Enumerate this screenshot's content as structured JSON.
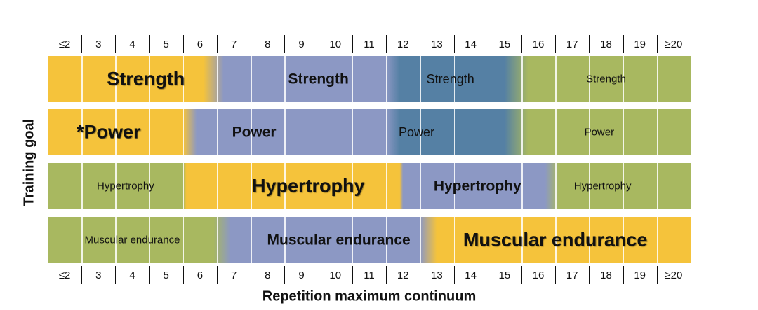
{
  "colors": {
    "gold": "#F5C33B",
    "lavender": "#8C98C4",
    "steel_blue": "#5580A4",
    "olive": "#A8B860",
    "divider": "#ffffff"
  },
  "scale": {
    "ticks": [
      "≤2",
      "3",
      "4",
      "5",
      "6",
      "7",
      "8",
      "9",
      "10",
      "11",
      "12",
      "13",
      "14",
      "15",
      "16",
      "17",
      "18",
      "19",
      "≥20"
    ]
  },
  "axis": {
    "x_title": "Repetition maximum continuum",
    "y_title": "Training goal"
  },
  "rows": [
    {
      "goal": "Strength",
      "segments": [
        {
          "from": 0,
          "to": 4.6,
          "color": "gold"
        },
        {
          "from": 5.2,
          "to": 10,
          "color": "lavender"
        },
        {
          "from": 10.4,
          "to": 13.5,
          "color": "steel_blue"
        },
        {
          "from": 14.2,
          "to": 19,
          "color": "olive"
        }
      ],
      "labels": [
        {
          "text": "Strength",
          "center": 2.9,
          "style": "big"
        },
        {
          "text": "Strength",
          "center": 8.0,
          "style": "mid"
        },
        {
          "text": "Strength",
          "center": 11.9,
          "style": "plain"
        },
        {
          "text": "Strength",
          "center": 16.5,
          "style": "small"
        }
      ]
    },
    {
      "goal": "Power",
      "segments": [
        {
          "from": 0,
          "to": 4.0,
          "color": "gold"
        },
        {
          "from": 4.4,
          "to": 10,
          "color": "lavender"
        },
        {
          "from": 10.4,
          "to": 13.5,
          "color": "steel_blue"
        },
        {
          "from": 14.2,
          "to": 19,
          "color": "olive"
        }
      ],
      "labels": [
        {
          "text": "*Power",
          "center": 1.8,
          "style": "big"
        },
        {
          "text": "Power",
          "center": 6.1,
          "style": "mid"
        },
        {
          "text": "Power",
          "center": 10.9,
          "style": "plain"
        },
        {
          "text": "Power",
          "center": 16.3,
          "style": "small"
        }
      ]
    },
    {
      "goal": "Hypertrophy",
      "segments": [
        {
          "from": 0,
          "to": 4.0,
          "color": "olive"
        },
        {
          "from": 4.1,
          "to": 10.4,
          "color": "gold"
        },
        {
          "from": 10.5,
          "to": 14.7,
          "color": "lavender"
        },
        {
          "from": 15.1,
          "to": 19,
          "color": "olive"
        }
      ],
      "labels": [
        {
          "text": "Hypertrophy",
          "center": 2.3,
          "style": "small"
        },
        {
          "text": "Hypertrophy",
          "center": 7.7,
          "style": "big"
        },
        {
          "text": "Hypertrophy",
          "center": 12.7,
          "style": "mid"
        },
        {
          "text": "Hypertrophy",
          "center": 16.4,
          "style": "small"
        }
      ]
    },
    {
      "goal": "Muscular endurance",
      "segments": [
        {
          "from": 0,
          "to": 4.9,
          "color": "olive"
        },
        {
          "from": 5.4,
          "to": 11.0,
          "color": "lavender"
        },
        {
          "from": 11.5,
          "to": 19,
          "color": "gold"
        }
      ],
      "labels": [
        {
          "text": "Muscular endurance",
          "center": 2.5,
          "style": "small"
        },
        {
          "text": "Muscular endurance",
          "center": 8.6,
          "style": "mid"
        },
        {
          "text": "Muscular endurance",
          "center": 15.0,
          "style": "big"
        }
      ]
    }
  ]
}
